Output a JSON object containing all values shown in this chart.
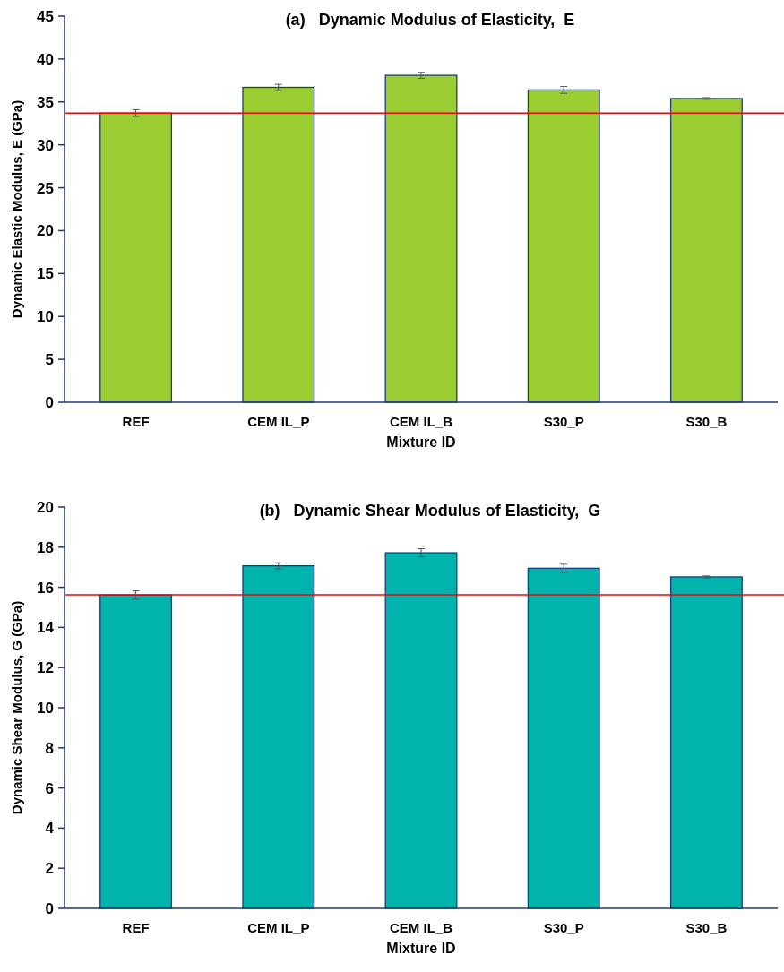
{
  "chart_data": [
    {
      "type": "bar",
      "title": "(a)   Dynamic Modulus of Elasticity,  E",
      "xlabel": "Mixture ID",
      "ylabel": "Dynamic Elastic Modulus, E (GPa)",
      "categories": [
        "REF",
        "CEM IL_P",
        "CEM IL_B",
        "S30_P",
        "S30_B"
      ],
      "values": [
        33.7,
        36.7,
        38.1,
        36.4,
        35.4
      ],
      "errors": [
        0.4,
        0.35,
        0.35,
        0.4,
        0.1
      ],
      "color": "#9acd32",
      "ylim": [
        0,
        45
      ],
      "yticks": [
        0,
        5,
        10,
        15,
        20,
        25,
        30,
        35,
        40,
        45
      ],
      "grid": false,
      "ref_lines": [
        {
          "axis": "y",
          "value": 33.7,
          "color": "#ff0000"
        }
      ]
    },
    {
      "type": "bar",
      "title": "(b)   Dynamic Shear Modulus of Elasticity,  G",
      "xlabel": "Mixture ID",
      "ylabel": "Dynamic Shear Modulus, G  (GPa)",
      "categories": [
        "REF",
        "CEM IL_P",
        "CEM IL_B",
        "S30_P",
        "S30_B"
      ],
      "values": [
        15.62,
        17.07,
        17.72,
        16.95,
        16.52
      ],
      "errors": [
        0.2,
        0.15,
        0.2,
        0.2,
        0.05
      ],
      "color": "#00b3ad",
      "ylim": [
        0,
        20
      ],
      "yticks": [
        0,
        2,
        4,
        6,
        8,
        10,
        12,
        14,
        16,
        18,
        20
      ],
      "grid": false,
      "ref_lines": [
        {
          "axis": "y",
          "value": 15.62,
          "color": "#ff0000"
        }
      ]
    }
  ]
}
